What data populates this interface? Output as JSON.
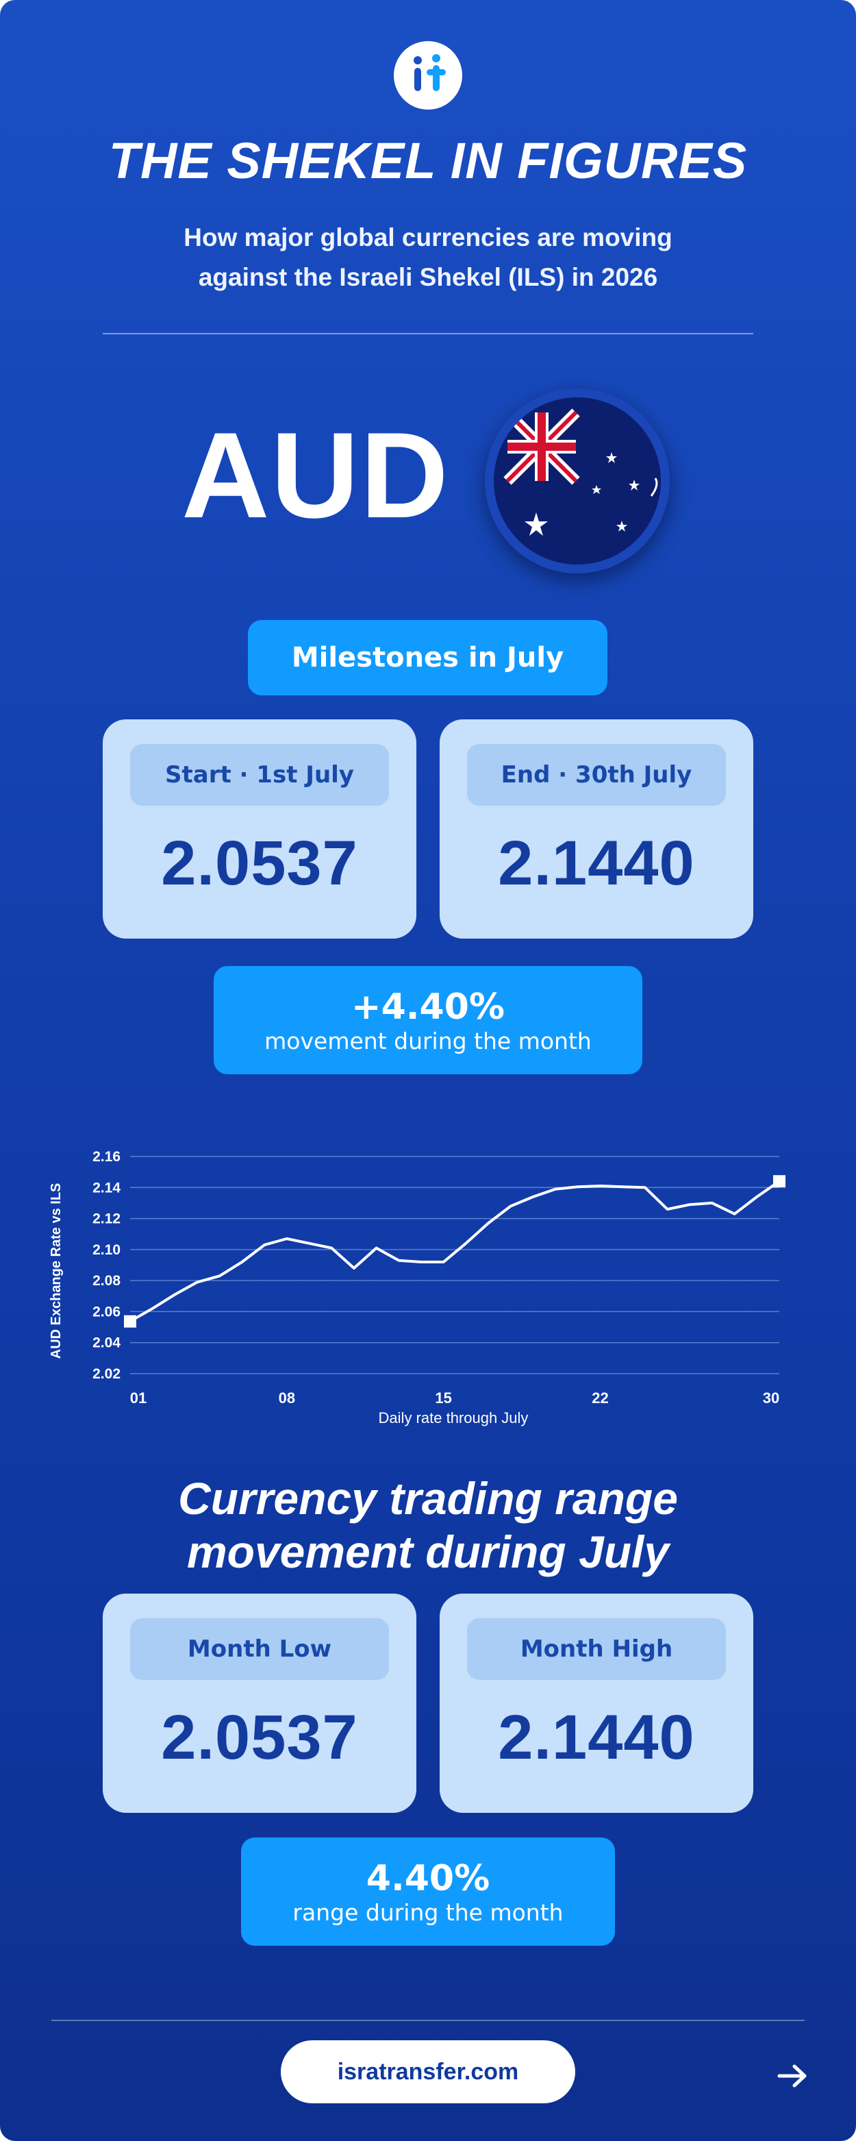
{
  "header": {
    "logo_text": "it",
    "title": "THE SHEKEL IN FIGURES",
    "subtitle_line1": "How major global currencies are moving",
    "subtitle_line2": "against the Israeli Shekel (ILS) in 2026"
  },
  "currency": {
    "code": "AUD",
    "flag_icon": "australia-flag-icon"
  },
  "milestones": {
    "heading": "Milestones in July",
    "start_label": "Start · 1st July",
    "start_value": "2.0537",
    "end_label": "End · 30th July",
    "end_value": "2.1440",
    "movement_value": "+4.40%",
    "movement_label": "movement during the month"
  },
  "chart_data": {
    "type": "line",
    "ylabel": "AUD Exchange Rate vs ILS",
    "xlabel": "Daily rate through July",
    "ylim": [
      2.02,
      2.16
    ],
    "yticks": [
      "2.16",
      "2.14",
      "2.12",
      "2.10",
      "2.08",
      "2.06",
      "2.04",
      "2.02"
    ],
    "xlim": [
      1,
      30
    ],
    "xticks": [
      {
        "day": 1,
        "label": "01"
      },
      {
        "day": 8,
        "label": "08"
      },
      {
        "day": 15,
        "label": "15"
      },
      {
        "day": 22,
        "label": "22"
      },
      {
        "day": 30,
        "label": "30"
      }
    ],
    "grid": true,
    "x": [
      1,
      2,
      3,
      4,
      5,
      6,
      7,
      8,
      9,
      10,
      11,
      12,
      13,
      14,
      15,
      16,
      17,
      18,
      19,
      20,
      21,
      22,
      23,
      24,
      25,
      26,
      27,
      28,
      29,
      30
    ],
    "values": [
      2.0537,
      2.062,
      2.071,
      2.079,
      2.083,
      2.092,
      2.103,
      2.107,
      2.104,
      2.101,
      2.088,
      2.101,
      2.093,
      2.092,
      2.092,
      2.104,
      2.117,
      2.128,
      2.134,
      2.139,
      2.1405,
      2.141,
      2.1405,
      2.14,
      2.126,
      2.129,
      2.13,
      2.123,
      2.134,
      2.144
    ],
    "markers": [
      {
        "day": 1,
        "value": 2.0537
      },
      {
        "day": 30,
        "value": 2.144
      }
    ],
    "colors": {
      "line": "#ffffff",
      "grid": "#5a7ed0"
    }
  },
  "range": {
    "heading_line1": "Currency trading range",
    "heading_line2": "movement during July",
    "low_label": "Month Low",
    "low_value": "2.0537",
    "high_label": "Month High",
    "high_value": "2.1440",
    "range_value": "4.40%",
    "range_label": "range during the month"
  },
  "footer": {
    "site": "isratransfer.com",
    "arrow_icon": "arrow-right-icon"
  },
  "colors": {
    "background": "#1545b5",
    "accent": "#129bff",
    "card": "#c7e0fb",
    "card_text": "#143c9e"
  }
}
